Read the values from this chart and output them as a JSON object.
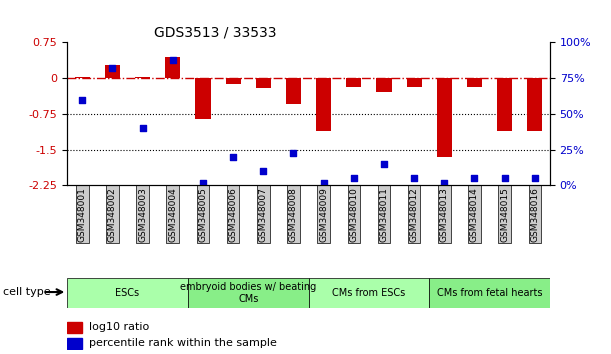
{
  "title": "GDS3513 / 33533",
  "samples": [
    "GSM348001",
    "GSM348002",
    "GSM348003",
    "GSM348004",
    "GSM348005",
    "GSM348006",
    "GSM348007",
    "GSM348008",
    "GSM348009",
    "GSM348010",
    "GSM348011",
    "GSM348012",
    "GSM348013",
    "GSM348014",
    "GSM348015",
    "GSM348016"
  ],
  "log10_ratio": [
    0.02,
    0.28,
    0.02,
    0.45,
    -0.85,
    -0.12,
    -0.2,
    -0.55,
    -1.1,
    -0.18,
    -0.28,
    -0.18,
    -1.65,
    -0.18,
    -1.1,
    -1.1
  ],
  "percentile_rank": [
    60,
    82,
    40,
    88,
    2,
    20,
    10,
    23,
    2,
    5,
    15,
    5,
    2,
    5,
    5,
    5
  ],
  "ylim": [
    -2.25,
    0.75
  ],
  "right_ylim": [
    0,
    100
  ],
  "right_yticks": [
    0,
    25,
    50,
    75,
    100
  ],
  "right_yticklabels": [
    "0%",
    "25%",
    "50%",
    "75%",
    "100%"
  ],
  "yticks": [
    -2.25,
    -1.5,
    -0.75,
    0,
    0.75
  ],
  "hline_dashed": 0.0,
  "hlines_dotted": [
    -0.75,
    -1.5
  ],
  "bar_color": "#cc0000",
  "dot_color": "#0000cc",
  "bar_width": 0.5,
  "cell_type_groups": [
    {
      "label": "ESCs",
      "start": 0,
      "end": 3,
      "color": "#aaffaa"
    },
    {
      "label": "embryoid bodies w/ beating\nCMs",
      "start": 4,
      "end": 7,
      "color": "#88ee88"
    },
    {
      "label": "CMs from ESCs",
      "start": 8,
      "end": 11,
      "color": "#aaffaa"
    },
    {
      "label": "CMs from fetal hearts",
      "start": 12,
      "end": 15,
      "color": "#88ee88"
    }
  ],
  "legend_bar_label": "log10 ratio",
  "legend_dot_label": "percentile rank within the sample",
  "cell_type_label": "cell type",
  "background_color": "#ffffff"
}
